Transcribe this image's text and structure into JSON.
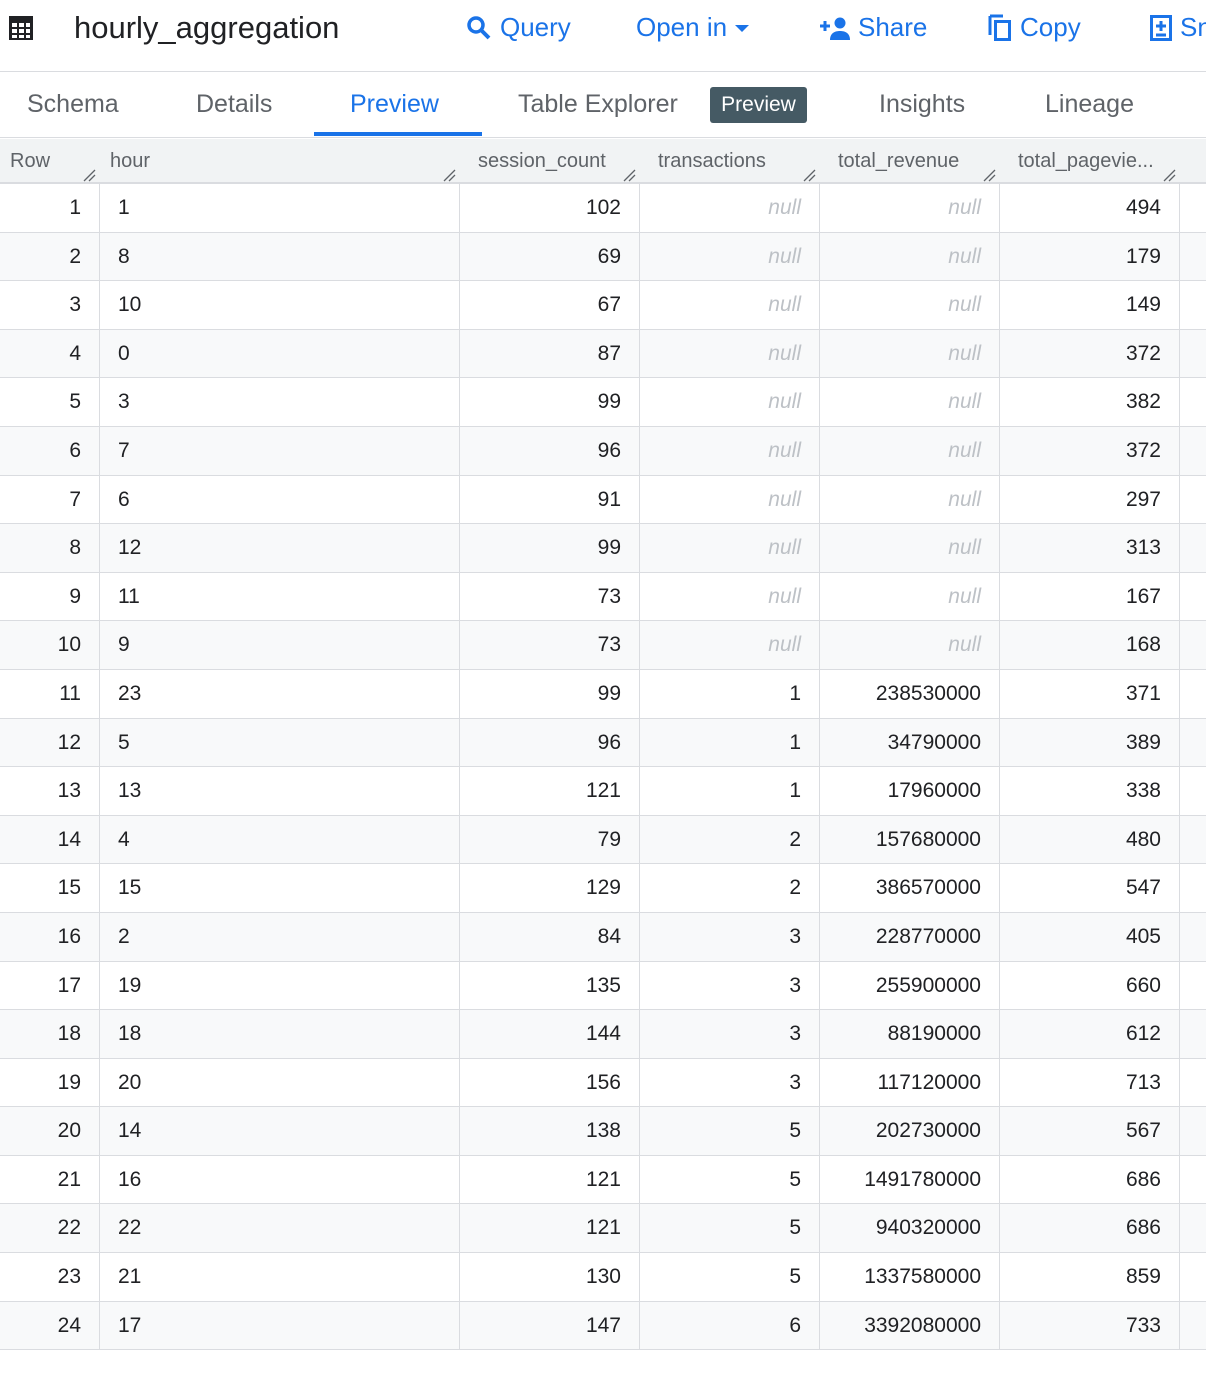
{
  "header": {
    "title": "hourly_aggregation",
    "actions": {
      "query": "Query",
      "open_in": "Open in",
      "share": "Share",
      "copy": "Copy",
      "snapshot": "Sn"
    }
  },
  "tabs": {
    "schema": "Schema",
    "details": "Details",
    "preview": "Preview",
    "table_explorer": "Table Explorer",
    "table_explorer_badge": "Preview",
    "insights": "Insights",
    "lineage": "Lineage",
    "active": "Preview"
  },
  "table": {
    "columns": [
      "Row",
      "hour",
      "session_count",
      "transactions",
      "total_revenue",
      "total_pagevie..."
    ],
    "rows": [
      [
        "1",
        "1",
        "102",
        "null",
        "null",
        "494"
      ],
      [
        "2",
        "8",
        "69",
        "null",
        "null",
        "179"
      ],
      [
        "3",
        "10",
        "67",
        "null",
        "null",
        "149"
      ],
      [
        "4",
        "0",
        "87",
        "null",
        "null",
        "372"
      ],
      [
        "5",
        "3",
        "99",
        "null",
        "null",
        "382"
      ],
      [
        "6",
        "7",
        "96",
        "null",
        "null",
        "372"
      ],
      [
        "7",
        "6",
        "91",
        "null",
        "null",
        "297"
      ],
      [
        "8",
        "12",
        "99",
        "null",
        "null",
        "313"
      ],
      [
        "9",
        "11",
        "73",
        "null",
        "null",
        "167"
      ],
      [
        "10",
        "9",
        "73",
        "null",
        "null",
        "168"
      ],
      [
        "11",
        "23",
        "99",
        "1",
        "238530000",
        "371"
      ],
      [
        "12",
        "5",
        "96",
        "1",
        "34790000",
        "389"
      ],
      [
        "13",
        "13",
        "121",
        "1",
        "17960000",
        "338"
      ],
      [
        "14",
        "4",
        "79",
        "2",
        "157680000",
        "480"
      ],
      [
        "15",
        "15",
        "129",
        "2",
        "386570000",
        "547"
      ],
      [
        "16",
        "2",
        "84",
        "3",
        "228770000",
        "405"
      ],
      [
        "17",
        "19",
        "135",
        "3",
        "255900000",
        "660"
      ],
      [
        "18",
        "18",
        "144",
        "3",
        "88190000",
        "612"
      ],
      [
        "19",
        "20",
        "156",
        "3",
        "117120000",
        "713"
      ],
      [
        "20",
        "14",
        "138",
        "5",
        "202730000",
        "567"
      ],
      [
        "21",
        "16",
        "121",
        "5",
        "1491780000",
        "686"
      ],
      [
        "22",
        "22",
        "121",
        "5",
        "940320000",
        "686"
      ],
      [
        "23",
        "21",
        "130",
        "5",
        "1337580000",
        "859"
      ],
      [
        "24",
        "17",
        "147",
        "6",
        "3392080000",
        "733"
      ]
    ]
  },
  "colors": {
    "accent": "#1a73e8",
    "badge": "#455a64",
    "null_text": "#bdc1c6"
  }
}
